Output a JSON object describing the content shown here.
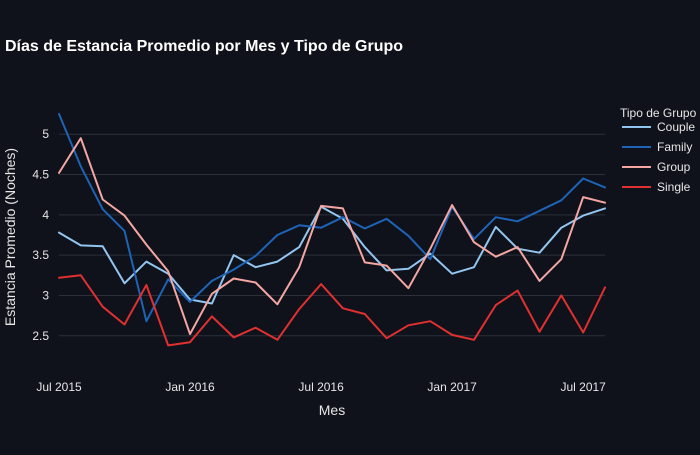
{
  "chart_data": {
    "type": "line",
    "title": "Días de Estancia Promedio por Mes y Tipo de Grupo",
    "xlabel": "Mes",
    "ylabel": "Estancia Promedio (Noches)",
    "legend_title": "Tipo de Grupo",
    "legend_position": "top-right",
    "grid": true,
    "x": [
      "2015-07",
      "2015-08",
      "2015-09",
      "2015-10",
      "2015-11",
      "2015-12",
      "2016-01",
      "2016-02",
      "2016-03",
      "2016-04",
      "2016-05",
      "2016-06",
      "2016-07",
      "2016-08",
      "2016-09",
      "2016-10",
      "2016-11",
      "2016-12",
      "2017-01",
      "2017-02",
      "2017-03",
      "2017-04",
      "2017-05",
      "2017-06",
      "2017-07",
      "2017-08"
    ],
    "x_tick_labels": [
      {
        "x": "2015-07",
        "label": "Jul 2015"
      },
      {
        "x": "2016-01",
        "label": "Jan 2016"
      },
      {
        "x": "2016-07",
        "label": "Jul 2016"
      },
      {
        "x": "2017-01",
        "label": "Jan 2017"
      },
      {
        "x": "2017-07",
        "label": "Jul 2017"
      }
    ],
    "y_ticks": [
      2.5,
      3,
      3.5,
      4,
      4.5,
      5
    ],
    "y_tick_labels": [
      "2.5",
      "3",
      "3.5",
      "4",
      "4.5",
      "5"
    ],
    "ylim": [
      2.1,
      5.3
    ],
    "series": [
      {
        "name": "Couple",
        "color": "#92c5f0",
        "values": [
          3.78,
          3.62,
          3.61,
          3.15,
          3.42,
          3.27,
          2.95,
          2.9,
          3.5,
          3.35,
          3.42,
          3.6,
          4.1,
          3.95,
          3.6,
          3.31,
          3.33,
          3.52,
          3.27,
          3.35,
          3.85,
          3.58,
          3.53,
          3.84,
          3.99,
          4.08
        ]
      },
      {
        "name": "Family",
        "color": "#1e63b6",
        "values": [
          5.25,
          4.6,
          4.07,
          3.8,
          2.68,
          3.2,
          2.92,
          3.18,
          3.32,
          3.49,
          3.75,
          3.87,
          3.84,
          3.97,
          3.83,
          3.95,
          3.74,
          3.45,
          4.1,
          3.7,
          3.97,
          3.92,
          4.05,
          4.18,
          4.45,
          4.34
        ]
      },
      {
        "name": "Group",
        "color": "#f4a6a2",
        "values": [
          4.52,
          4.95,
          4.19,
          3.99,
          3.63,
          3.3,
          2.52,
          3.02,
          3.21,
          3.16,
          2.89,
          3.35,
          4.11,
          4.08,
          3.41,
          3.37,
          3.09,
          3.58,
          4.12,
          3.66,
          3.48,
          3.6,
          3.18,
          3.45,
          4.22,
          4.15
        ]
      },
      {
        "name": "Single",
        "color": "#e03030",
        "values": [
          3.22,
          3.25,
          2.86,
          2.64,
          3.13,
          2.38,
          2.42,
          2.74,
          2.48,
          2.6,
          2.45,
          2.83,
          3.14,
          2.84,
          2.77,
          2.47,
          2.63,
          2.68,
          2.51,
          2.45,
          2.88,
          3.06,
          2.55,
          3.0,
          2.54,
          3.1
        ]
      }
    ]
  }
}
